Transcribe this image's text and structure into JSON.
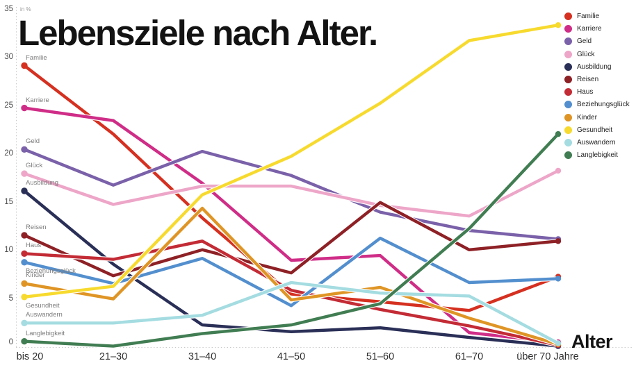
{
  "title": "Lebensziele nach Alter.",
  "unit_label": "in %",
  "x_axis_title": "Alter",
  "chart_data": {
    "type": "line",
    "title": "Lebensziele nach Alter.",
    "ylabel": "in %",
    "xlabel": "Alter",
    "ylim": [
      0,
      35
    ],
    "y_ticks": [
      0,
      5,
      10,
      15,
      20,
      25,
      30,
      35
    ],
    "grid": "dotted-axes-only",
    "legend_position": "top-right",
    "categories": [
      "bis 20",
      "21–30",
      "31–40",
      "41–50",
      "51–60",
      "61–70",
      "über 70 Jahre"
    ],
    "series": [
      {
        "name": "Familie",
        "color": "#d53020",
        "label_pos": "above",
        "values": [
          29.2,
          22.1,
          13.4,
          5.5,
          4.7,
          3.8,
          7.3
        ]
      },
      {
        "name": "Karriere",
        "color": "#cf2d87",
        "label_pos": "above",
        "values": [
          24.8,
          23.5,
          17.0,
          9.0,
          9.5,
          1.5,
          0.5
        ]
      },
      {
        "name": "Geld",
        "color": "#7a61a9",
        "label_pos": "above",
        "values": [
          20.5,
          16.8,
          20.3,
          17.8,
          14.0,
          12.1,
          11.2
        ]
      },
      {
        "name": "Glück",
        "color": "#eda6c8",
        "label_pos": "above",
        "values": [
          18.0,
          14.8,
          16.7,
          16.7,
          14.7,
          13.6,
          18.3
        ]
      },
      {
        "name": "Ausbildung",
        "color": "#2a2f57",
        "label_pos": "above",
        "values": [
          16.2,
          8.6,
          2.3,
          1.6,
          2.0,
          1.0,
          0.1
        ]
      },
      {
        "name": "Reisen",
        "color": "#8e2126",
        "label_pos": "above",
        "values": [
          11.6,
          7.4,
          10.1,
          7.7,
          15.0,
          10.1,
          11.0
        ]
      },
      {
        "name": "Haus",
        "color": "#c32b35",
        "label_pos": "above",
        "values": [
          9.7,
          9.1,
          11.0,
          5.9,
          3.9,
          2.2,
          0.2
        ]
      },
      {
        "name": "Beziehungsglück",
        "color": "#538fce",
        "label_pos": "below",
        "values": [
          8.8,
          6.6,
          9.2,
          4.3,
          11.3,
          6.7,
          7.1
        ]
      },
      {
        "name": "Kinder",
        "color": "#df9525",
        "label_pos": "above",
        "values": [
          6.6,
          5.0,
          14.4,
          4.9,
          6.2,
          3.0,
          0.3
        ]
      },
      {
        "name": "Gesundheit",
        "color": "#f7da2e",
        "label_pos": "below",
        "values": [
          5.2,
          6.3,
          15.8,
          19.8,
          25.3,
          31.8,
          33.4
        ]
      },
      {
        "name": "Auswandern",
        "color": "#a4dce1",
        "label_pos": "above",
        "values": [
          2.5,
          2.5,
          3.3,
          6.7,
          5.6,
          5.3,
          0.4
        ]
      },
      {
        "name": "Langlebigkeit",
        "color": "#417d52",
        "label_pos": "above",
        "values": [
          0.6,
          0.1,
          1.4,
          2.3,
          4.5,
          12.3,
          22.1
        ]
      }
    ]
  }
}
